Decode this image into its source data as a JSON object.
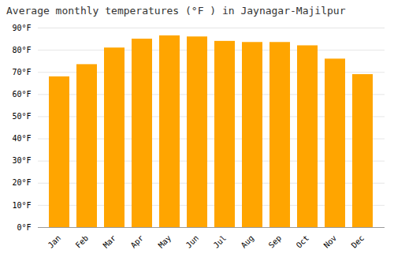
{
  "chart_data": {
    "type": "bar",
    "title": "Average monthly temperatures (°F ) in Jaynagar-Majilpur",
    "categories": [
      "Jan",
      "Feb",
      "Mar",
      "Apr",
      "May",
      "Jun",
      "Jul",
      "Aug",
      "Sep",
      "Oct",
      "Nov",
      "Dec"
    ],
    "values": [
      68,
      73.5,
      81,
      85,
      86.5,
      86,
      84,
      83.5,
      83.5,
      82,
      76,
      69
    ],
    "color": "#FFA500",
    "ylim": [
      0,
      90
    ],
    "yticks": [
      {
        "value": 0,
        "label": "0°F"
      },
      {
        "value": 10,
        "label": "10°F"
      },
      {
        "value": 20,
        "label": "20°F"
      },
      {
        "value": 30,
        "label": "30°F"
      },
      {
        "value": 40,
        "label": "40°F"
      },
      {
        "value": 50,
        "label": "50°F"
      },
      {
        "value": 60,
        "label": "60°F"
      },
      {
        "value": 70,
        "label": "70°F"
      },
      {
        "value": 80,
        "label": "80°F"
      },
      {
        "value": 90,
        "label": "90°F"
      }
    ],
    "grid": true
  }
}
